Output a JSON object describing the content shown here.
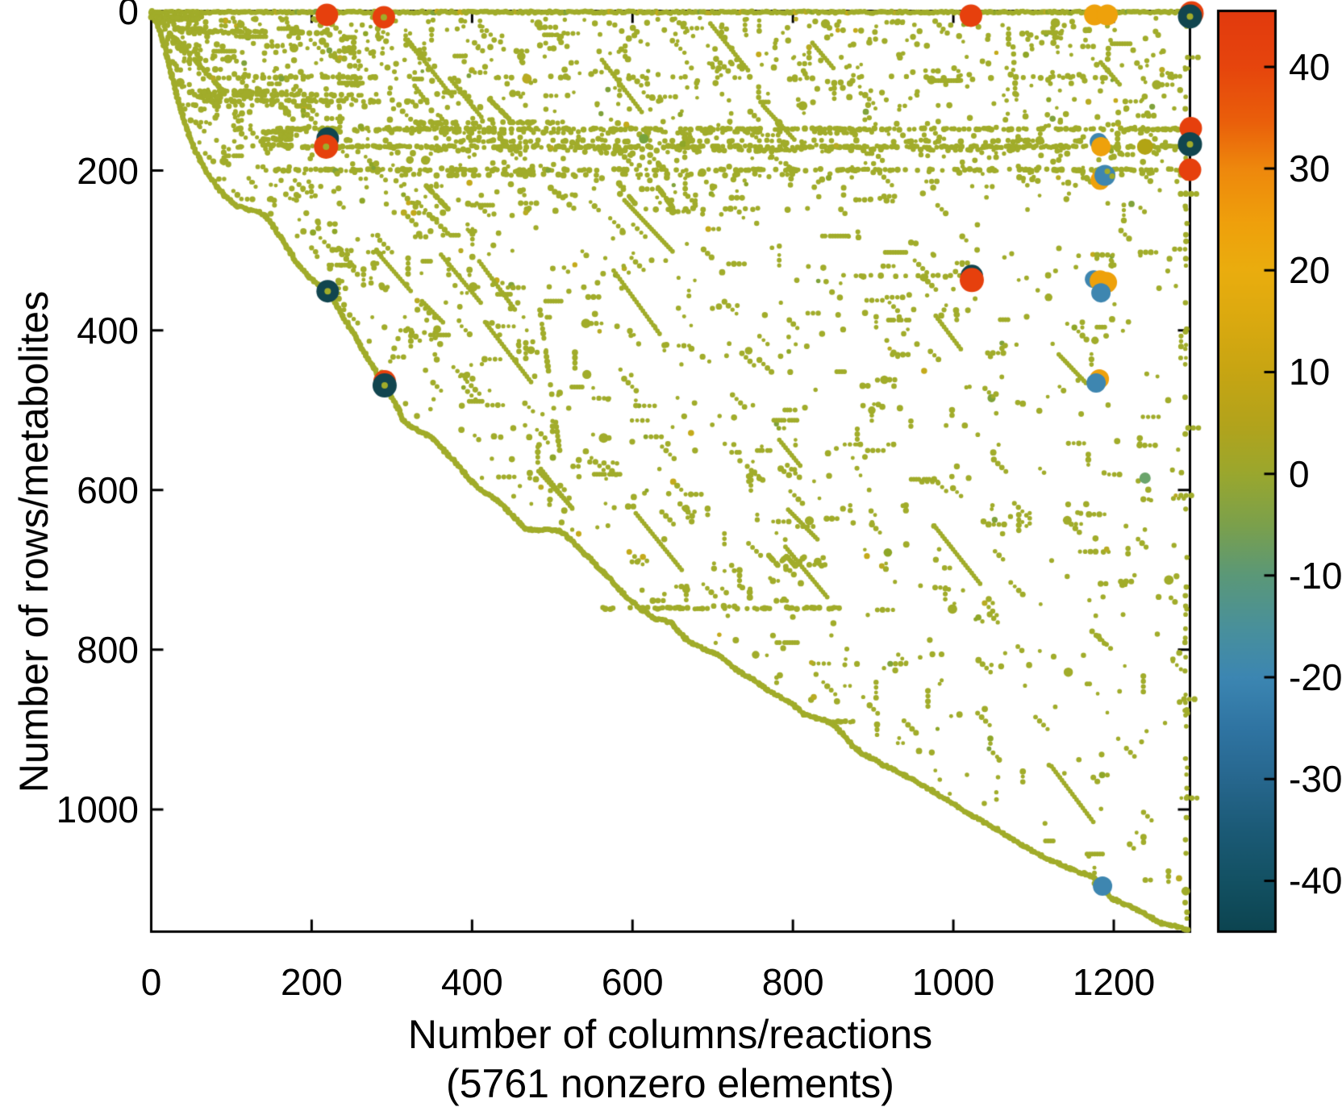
{
  "title": "",
  "labels": {
    "ylabel": "Number of rows/metabolites",
    "xlabel_line1": "Number of columns/reactions",
    "xlabel_line2": "(5761 nonzero elements)"
  },
  "axes": {
    "x_tick_labels": [
      "0",
      "200",
      "400",
      "600",
      "800",
      "1000",
      "1200"
    ],
    "y_tick_labels": [
      "0",
      "200",
      "400",
      "600",
      "800",
      "1000"
    ],
    "colorbar_tick_labels": [
      "40",
      "30",
      "20",
      "10",
      "0",
      "-10",
      "-20",
      "-30",
      "-40"
    ]
  },
  "chart_data": {
    "type": "scatter",
    "subtype": "sparsity_spy_plot",
    "title": "",
    "xlabel": "Number of columns/reactions",
    "xlabel_note": "(5761 nonzero elements)",
    "ylabel": "Number of rows/metabolites",
    "nonzero_elements": 5761,
    "n_columns": 1295,
    "n_rows": 1153,
    "xlim": [
      0,
      1295
    ],
    "ylim": [
      0,
      1153
    ],
    "y_axis_inverted": true,
    "x_ticks": [
      0,
      200,
      400,
      600,
      800,
      1000,
      1200
    ],
    "y_ticks": [
      0,
      200,
      400,
      600,
      800,
      1000
    ],
    "grid": false,
    "legend": "none",
    "dot_color": "#a1ac2a",
    "dot_color_variants": [
      "#a1ac2a",
      "#8ea627",
      "#b8ab22",
      "#7fa23a",
      "#c4aa1a"
    ],
    "colorbar": {
      "position": "right",
      "vmin": -45,
      "vmax": 45.5,
      "ticks": [
        40,
        30,
        20,
        10,
        0,
        -10,
        -20,
        -30,
        -40
      ],
      "stops": [
        [
          0.0,
          "#e23a0e"
        ],
        [
          0.06,
          "#e6450d"
        ],
        [
          0.12,
          "#ea5f0b"
        ],
        [
          0.171,
          "#ee880d"
        ],
        [
          0.23,
          "#efa00c"
        ],
        [
          0.282,
          "#eaad0e"
        ],
        [
          0.34,
          "#d9a910"
        ],
        [
          0.392,
          "#c7a513"
        ],
        [
          0.45,
          "#b2a31c"
        ],
        [
          0.503,
          "#9aa72e"
        ],
        [
          0.56,
          "#7aa04d"
        ],
        [
          0.613,
          "#5b9878"
        ],
        [
          0.67,
          "#49909b"
        ],
        [
          0.724,
          "#3c86b2"
        ],
        [
          0.78,
          "#2f74a2"
        ],
        [
          0.834,
          "#27678e"
        ],
        [
          0.89,
          "#1b5a76"
        ],
        [
          0.945,
          "#135163"
        ],
        [
          1.0,
          "#0c4450"
        ]
      ]
    },
    "envelope": [
      [
        0,
        0
      ],
      [
        7,
        16
      ],
      [
        14,
        36
      ],
      [
        20,
        58
      ],
      [
        26,
        82
      ],
      [
        31,
        103
      ],
      [
        37,
        124
      ],
      [
        44,
        146
      ],
      [
        52,
        168
      ],
      [
        61,
        188
      ],
      [
        71,
        205
      ],
      [
        82,
        220
      ],
      [
        93,
        233
      ],
      [
        104,
        243
      ],
      [
        118,
        248
      ],
      [
        134,
        252
      ],
      [
        143,
        258
      ],
      [
        152,
        270
      ],
      [
        162,
        285
      ],
      [
        173,
        302
      ],
      [
        183,
        318
      ],
      [
        196,
        332
      ],
      [
        210,
        344
      ],
      [
        220,
        352
      ],
      [
        229,
        365
      ],
      [
        238,
        381
      ],
      [
        248,
        397
      ],
      [
        258,
        414
      ],
      [
        268,
        432
      ],
      [
        278,
        448
      ],
      [
        291,
        469
      ],
      [
        300,
        485
      ],
      [
        308,
        499
      ],
      [
        315,
        514
      ],
      [
        324,
        521
      ],
      [
        334,
        526
      ],
      [
        344,
        531
      ],
      [
        352,
        536
      ],
      [
        361,
        546
      ],
      [
        370,
        556
      ],
      [
        380,
        566
      ],
      [
        390,
        578
      ],
      [
        400,
        590
      ],
      [
        411,
        600
      ],
      [
        422,
        607
      ],
      [
        432,
        614
      ],
      [
        442,
        623
      ],
      [
        452,
        634
      ],
      [
        460,
        643
      ],
      [
        467,
        649
      ],
      [
        480,
        650
      ],
      [
        492,
        650
      ],
      [
        503,
        650
      ],
      [
        511,
        652
      ],
      [
        521,
        660
      ],
      [
        532,
        671
      ],
      [
        543,
        682
      ],
      [
        554,
        693
      ],
      [
        565,
        704
      ],
      [
        576,
        716
      ],
      [
        588,
        730
      ],
      [
        600,
        740
      ],
      [
        612,
        750
      ],
      [
        625,
        760
      ],
      [
        637,
        763
      ],
      [
        648,
        766
      ],
      [
        657,
        776
      ],
      [
        666,
        786
      ],
      [
        677,
        793
      ],
      [
        688,
        799
      ],
      [
        699,
        803
      ],
      [
        710,
        808
      ],
      [
        719,
        816
      ],
      [
        728,
        824
      ],
      [
        738,
        831
      ],
      [
        748,
        836
      ],
      [
        758,
        843
      ],
      [
        768,
        850
      ],
      [
        780,
        857
      ],
      [
        792,
        864
      ],
      [
        803,
        871
      ],
      [
        814,
        881
      ],
      [
        826,
        884
      ],
      [
        838,
        888
      ],
      [
        850,
        893
      ],
      [
        862,
        905
      ],
      [
        874,
        920
      ],
      [
        886,
        930
      ],
      [
        900,
        937
      ],
      [
        912,
        944
      ],
      [
        926,
        950
      ],
      [
        938,
        957
      ],
      [
        950,
        963
      ],
      [
        962,
        970
      ],
      [
        974,
        977
      ],
      [
        990,
        987
      ],
      [
        1006,
        997
      ],
      [
        1022,
        1007
      ],
      [
        1038,
        1016
      ],
      [
        1054,
        1025
      ],
      [
        1070,
        1035
      ],
      [
        1086,
        1045
      ],
      [
        1098,
        1052
      ],
      [
        1110,
        1058
      ],
      [
        1122,
        1064
      ],
      [
        1134,
        1069
      ],
      [
        1146,
        1074
      ],
      [
        1158,
        1079
      ],
      [
        1170,
        1083
      ],
      [
        1180,
        1090
      ],
      [
        1186,
        1096
      ],
      [
        1192,
        1105
      ],
      [
        1198,
        1112
      ],
      [
        1206,
        1115
      ],
      [
        1214,
        1119
      ],
      [
        1222,
        1122
      ],
      [
        1230,
        1126
      ],
      [
        1238,
        1130
      ],
      [
        1246,
        1135
      ],
      [
        1254,
        1141
      ],
      [
        1262,
        1143
      ],
      [
        1271,
        1145
      ],
      [
        1280,
        1147
      ],
      [
        1287,
        1149
      ],
      [
        1293,
        1151
      ]
    ],
    "bands": [
      {
        "y": 8,
        "x0": 0,
        "x1": 64,
        "d": 0.85
      },
      {
        "y": 11,
        "x0": 16,
        "x1": 62,
        "d": 0.9
      },
      {
        "y": 22,
        "x0": 30,
        "x1": 64,
        "d": 0.5
      },
      {
        "y": 26,
        "x0": 58,
        "x1": 150,
        "d": 0.55
      },
      {
        "y": 27,
        "x0": 160,
        "x1": 240,
        "d": 0.4
      },
      {
        "y": 48,
        "x0": 18,
        "x1": 65,
        "d": 0.45
      },
      {
        "y": 60,
        "x0": 58,
        "x1": 95,
        "d": 0.5
      },
      {
        "y": 83,
        "x0": 115,
        "x1": 280,
        "d": 0.4
      },
      {
        "y": 83,
        "x0": 430,
        "x1": 1285,
        "d": 0.1
      },
      {
        "y": 101,
        "x0": 45,
        "x1": 160,
        "d": 0.5
      },
      {
        "y": 105,
        "x0": 48,
        "x1": 285,
        "d": 0.55
      },
      {
        "y": 108,
        "x0": 58,
        "x1": 88,
        "d": 0.5
      },
      {
        "y": 113,
        "x0": 60,
        "x1": 290,
        "d": 0.5
      },
      {
        "y": 118,
        "x0": 70,
        "x1": 250,
        "d": 0.35
      },
      {
        "y": 140,
        "x0": 330,
        "x1": 520,
        "d": 0.28
      },
      {
        "y": 148,
        "x0": 105,
        "x1": 1290,
        "d": 0.5
      },
      {
        "y": 152,
        "x0": 300,
        "x1": 950,
        "d": 0.28
      },
      {
        "y": 152,
        "x0": 140,
        "x1": 176,
        "d": 0.85
      },
      {
        "y": 160,
        "x0": 140,
        "x1": 176,
        "d": 0.85
      },
      {
        "y": 163,
        "x0": 380,
        "x1": 1200,
        "d": 0.22
      },
      {
        "y": 168,
        "x0": 140,
        "x1": 176,
        "d": 0.85
      },
      {
        "y": 170,
        "x0": 105,
        "x1": 1290,
        "d": 0.55
      },
      {
        "y": 174,
        "x0": 330,
        "x1": 1100,
        "d": 0.25
      },
      {
        "y": 199,
        "x0": 140,
        "x1": 1290,
        "d": 0.45
      },
      {
        "y": 205,
        "x0": 300,
        "x1": 800,
        "d": 0.2
      },
      {
        "y": 248,
        "x0": 440,
        "x1": 900,
        "d": 0.12
      },
      {
        "y": 332,
        "x0": 860,
        "x1": 1000,
        "d": 0.25
      },
      {
        "y": 748,
        "x0": 560,
        "x1": 860,
        "d": 0.45
      },
      {
        "y": 890,
        "x0": 850,
        "x1": 876,
        "d": 0.8
      }
    ],
    "strands": [
      {
        "p0": [
          30,
          34
        ],
        "p1": [
          90,
          101
        ]
      },
      {
        "p0": [
          343,
          219
        ],
        "p1": [
          370,
          248
        ]
      },
      {
        "p0": [
          585,
          219
        ],
        "p1": [
          603,
          241
        ]
      },
      {
        "p0": [
          632,
          221
        ],
        "p1": [
          650,
          246
        ]
      },
      {
        "p0": [
          422,
          111
        ],
        "p1": [
          452,
          141
        ]
      },
      {
        "p0": [
          483,
          363
        ],
        "p1": [
          510,
          556
        ],
        "sparse": true
      },
      {
        "p0": [
          770,
          682
        ],
        "p1": [
          781,
          694
        ]
      },
      {
        "p0": [
          781,
          694
        ],
        "p1": [
          792,
          683
        ]
      },
      {
        "p0": [
          792,
          683
        ],
        "p1": [
          803,
          695
        ]
      },
      {
        "p0": [
          803,
          695
        ],
        "p1": [
          814,
          684
        ]
      }
    ],
    "markers": [
      {
        "x": 1297,
        "y": 3,
        "r": 15,
        "color": "#e6400d",
        "value": 45
      },
      {
        "x": 1295,
        "y": 7,
        "r": 15,
        "color": "#11454f",
        "value": -43,
        "core": true
      },
      {
        "x": 219,
        "y": 5,
        "r": 14,
        "color": "#e6400d",
        "value": 45
      },
      {
        "x": 290,
        "y": 8,
        "r": 14,
        "color": "#e6400d",
        "value": 45,
        "core": true
      },
      {
        "x": 1022,
        "y": 6,
        "r": 14,
        "color": "#e6400d",
        "value": 45
      },
      {
        "x": 1176,
        "y": 5,
        "r": 13,
        "color": "#eea10b",
        "value": 25
      },
      {
        "x": 1192,
        "y": 5,
        "r": 13,
        "color": "#eea10b",
        "value": 25
      },
      {
        "x": 220,
        "y": 160,
        "r": 14,
        "color": "#11454f",
        "value": -43
      },
      {
        "x": 218,
        "y": 170,
        "r": 15,
        "color": "#e6400d",
        "value": 45,
        "core": true
      },
      {
        "x": 1296,
        "y": 147,
        "r": 14,
        "color": "#e6400d",
        "value": 45
      },
      {
        "x": 1295,
        "y": 167,
        "r": 15,
        "color": "#11454f",
        "value": -43,
        "core": true
      },
      {
        "x": 1295,
        "y": 199,
        "r": 14,
        "color": "#e6400d",
        "value": 45
      },
      {
        "x": 1181,
        "y": 164,
        "r": 11,
        "color": "#3e86b0",
        "value": -25
      },
      {
        "x": 1184,
        "y": 170,
        "r": 12,
        "color": "#eea10b",
        "value": 25
      },
      {
        "x": 1239,
        "y": 170,
        "r": 10,
        "color": "#b2a414",
        "value": 12
      },
      {
        "x": 1183,
        "y": 212,
        "r": 12,
        "color": "#eea10b",
        "value": 25
      },
      {
        "x": 1189,
        "y": 206,
        "r": 13,
        "color": "#3e86b0",
        "value": -25
      },
      {
        "x": 1192,
        "y": 201,
        "r": 3.5,
        "color": "#a1ac2a",
        "value": 0
      },
      {
        "x": 1198,
        "y": 207,
        "r": 3.5,
        "color": "#a1ac2a",
        "value": 0
      },
      {
        "x": 1023,
        "y": 332,
        "r": 14,
        "color": "#11454f",
        "value": -43
      },
      {
        "x": 1023,
        "y": 337,
        "r": 15,
        "color": "#e6400d",
        "value": 45
      },
      {
        "x": 1175,
        "y": 336,
        "r": 11,
        "color": "#3e86b0",
        "value": -25
      },
      {
        "x": 1183,
        "y": 338,
        "r": 13,
        "color": "#eea10b",
        "value": 25
      },
      {
        "x": 1191,
        "y": 340,
        "r": 13,
        "color": "#eea10b",
        "value": 25
      },
      {
        "x": 1184,
        "y": 353,
        "r": 12,
        "color": "#3e86b0",
        "value": -25
      },
      {
        "x": 220,
        "y": 351,
        "r": 14,
        "color": "#11454f",
        "value": -43,
        "core": true
      },
      {
        "x": 291,
        "y": 464,
        "r": 14,
        "color": "#e6400d",
        "value": 45
      },
      {
        "x": 291,
        "y": 469,
        "r": 15,
        "color": "#11454f",
        "value": -43,
        "core": true
      },
      {
        "x": 1182,
        "y": 461,
        "r": 12,
        "color": "#eea10b",
        "value": 25
      },
      {
        "x": 1178,
        "y": 466,
        "r": 12,
        "color": "#3e86b0",
        "value": -25
      },
      {
        "x": 1186,
        "y": 1096,
        "r": 12,
        "color": "#3e86b0",
        "value": -25
      },
      {
        "x": 1239,
        "y": 585,
        "r": 7,
        "color": "#6aa46b",
        "value": -8
      },
      {
        "x": 614,
        "y": 160,
        "r": 6,
        "color": "#76a33c",
        "value": -4
      }
    ],
    "scatter": {
      "seed": 1337,
      "n_uniform": 1400,
      "n_top_extra": 520,
      "n_dashes": 48,
      "n_diagonals": 26,
      "right_column_x": 1290,
      "right_column_n": 55,
      "left_column_x": 104,
      "left_column_n": 10
    }
  }
}
